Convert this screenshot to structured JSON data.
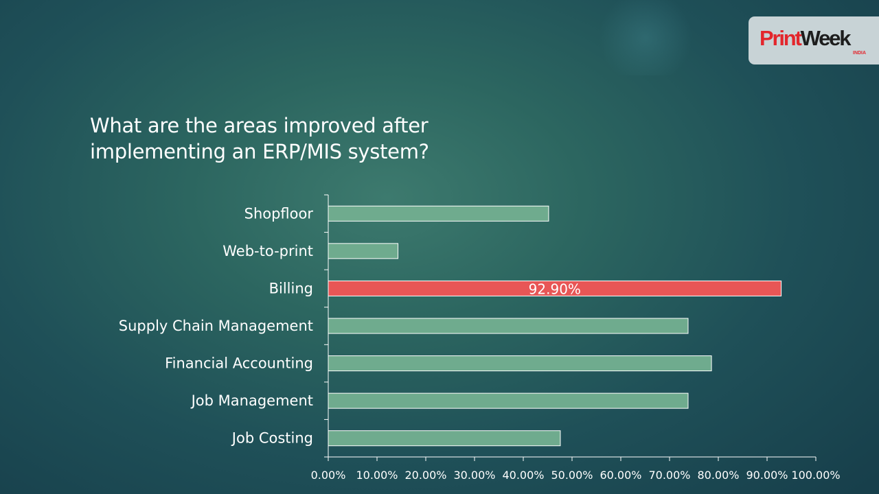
{
  "slide": {
    "title_line1": "What are the areas improved after",
    "title_line2": "implementing an ERP/MIS system?"
  },
  "logo": {
    "print": "Print",
    "week": "Week",
    "india": "INDIA",
    "colors": {
      "print": "#e3262c",
      "week": "#1d1d1d",
      "badge": "#c8d3d6"
    }
  },
  "chart_data": {
    "type": "bar",
    "orientation": "horizontal",
    "title": "What are the areas improved after implementing an ERP/MIS system?",
    "categories": [
      "Shopfloor",
      "Web-to-print",
      "Billing",
      "Supply Chain Management",
      "Financial Accounting",
      "Job Management",
      "Job Costing"
    ],
    "values": [
      45.2,
      14.3,
      92.9,
      73.8,
      78.6,
      73.8,
      47.6
    ],
    "highlight": {
      "category": "Billing",
      "label": "92.90%"
    },
    "xlim": [
      0,
      100
    ],
    "ticks": [
      "0.00%",
      "10.00%",
      "20.00%",
      "30.00%",
      "40.00%",
      "50.00%",
      "60.00%",
      "70.00%",
      "80.00%",
      "90.00%",
      "100.00%"
    ],
    "grid": false,
    "legend": "none",
    "colors": {
      "bar": "#6fab8e",
      "highlight": "#e85656",
      "bar_border": "#ffffff",
      "axis": "#ffffff"
    }
  }
}
